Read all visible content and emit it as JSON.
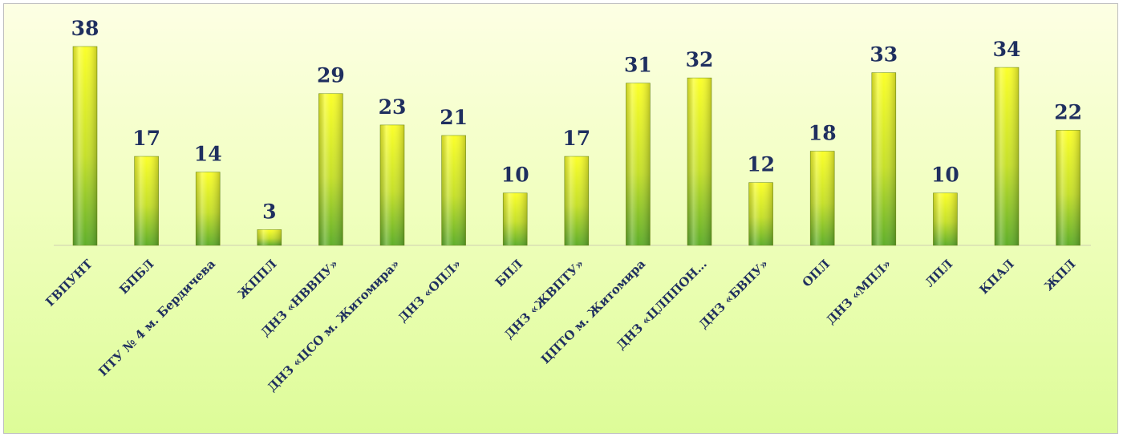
{
  "chart_data": {
    "type": "bar",
    "categories": [
      "ГВПУНТ",
      "БПБЛ",
      "ПТУ № 4 м. Бердичева",
      "ЖППЛ",
      "ДНЗ «НВВПУ»",
      "ДНЗ «ЦСО м. Житомира»",
      "ДНЗ «ОПЛ»",
      "БПЛ",
      "ДНЗ «ЖВПТУ»",
      "ЦПТО м. Житомира",
      "ДНЗ «ЦЛППОН…",
      "ДНЗ «БВПУ»",
      "ОПЛ",
      "ДНЗ «МПЛ»",
      "ЛПЛ",
      "КПАЛ",
      "ЖПЛ"
    ],
    "values": [
      38,
      17,
      14,
      3,
      29,
      23,
      21,
      10,
      17,
      31,
      32,
      12,
      18,
      33,
      10,
      34,
      22
    ],
    "ylim": [
      0,
      38
    ],
    "grid": false,
    "legend": "none",
    "colors": {
      "bar_top": "#fbff2a",
      "bar_bottom": "#5fae2a",
      "label": "#1f2f5f"
    }
  }
}
